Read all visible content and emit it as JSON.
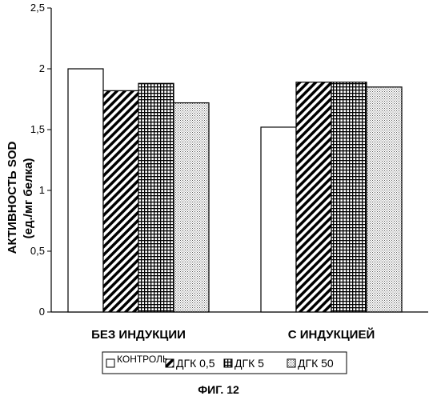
{
  "chart_data": {
    "type": "bar",
    "categories": [
      "БЕЗ ИНДУКЦИИ",
      "С ИНДУКЦИЕЙ"
    ],
    "series": [
      {
        "name": "КОНТРОЛЬ",
        "values": [
          2.0,
          1.52
        ],
        "pattern": "none"
      },
      {
        "name": "ДГК 0,5",
        "values": [
          1.82,
          1.89
        ],
        "pattern": "diagonal"
      },
      {
        "name": "ДГК 5",
        "values": [
          1.88,
          1.89
        ],
        "pattern": "grid"
      },
      {
        "name": "ДГК 50",
        "values": [
          1.72,
          1.85
        ],
        "pattern": "dots"
      }
    ],
    "ylabel_main": "АКТИВНОСТЬ SOD",
    "ylabel_unit": "(ед./мг белка)",
    "ylim": [
      0,
      2.5
    ],
    "yticks": [
      0,
      0.5,
      1,
      1.5,
      2,
      2.5
    ],
    "ytick_labels": [
      "0",
      "0,5",
      "1",
      "1,5",
      "2",
      "2,5"
    ],
    "grid": false,
    "legend_position": "bottom"
  },
  "caption": "ФИГ. 12"
}
